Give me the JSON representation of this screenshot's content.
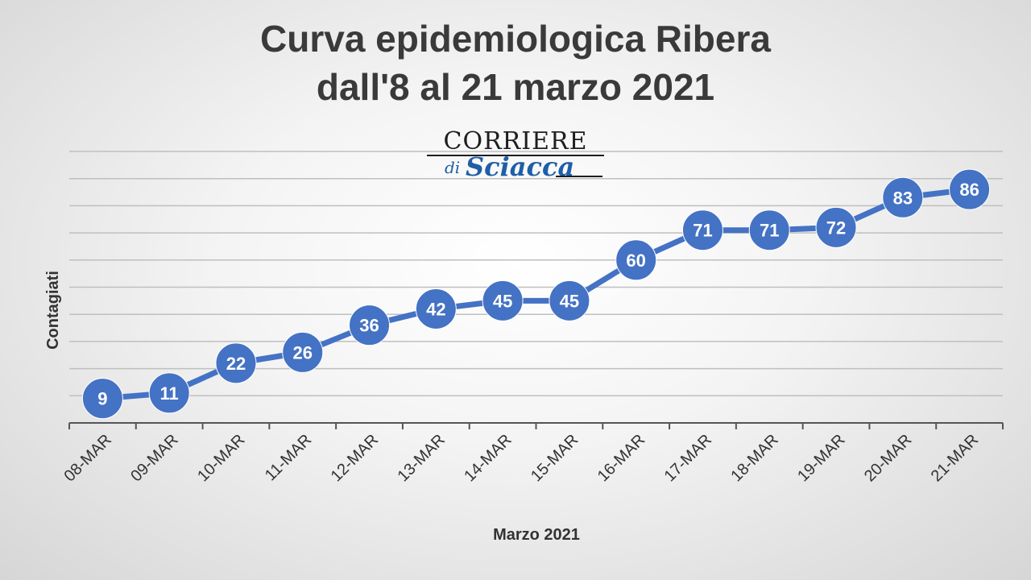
{
  "title_line1": "Curva epidemiologica Ribera",
  "title_line2": "dall'8 al 21 marzo 2021",
  "logo": {
    "line1": "CORRIERE",
    "line2_small": "di",
    "line2_script": "Sciacca"
  },
  "chart_data": {
    "type": "line",
    "categories": [
      "08-MAR",
      "09-MAR",
      "10-MAR",
      "11-MAR",
      "12-MAR",
      "13-MAR",
      "14-MAR",
      "15-MAR",
      "16-MAR",
      "17-MAR",
      "18-MAR",
      "19-MAR",
      "20-MAR",
      "21-MAR"
    ],
    "series": [
      {
        "values": [
          9,
          11,
          22,
          26,
          36,
          42,
          45,
          45,
          60,
          71,
          71,
          72,
          83,
          86
        ]
      }
    ],
    "xlabel": "Marzo 2021",
    "ylabel": "Contagiati",
    "ylim": [
      0,
      100
    ],
    "grid": true,
    "data_labels": true,
    "colors": {
      "line": "#4472c4",
      "marker": "#4472c4",
      "label": "#ffffff",
      "grid": "#bfbfbf",
      "axis": "#555555"
    }
  }
}
